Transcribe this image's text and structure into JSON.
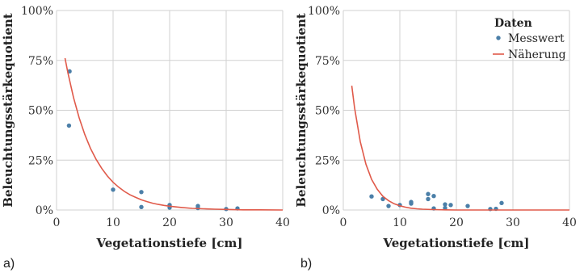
{
  "chart_data": [
    {
      "type": "scatter",
      "panel_label": "a)",
      "xlabel": "Vegetationstiefe [cm]",
      "ylabel": "Beleuchtungsstärkequotient",
      "xlim": [
        0,
        40
      ],
      "ylim": [
        0,
        100
      ],
      "x_ticks": [
        0,
        10,
        20,
        30,
        40
      ],
      "y_ticks": [
        0,
        25,
        50,
        75,
        100
      ],
      "y_tick_labels": [
        "0%",
        "25%",
        "50%",
        "75%",
        "100%"
      ],
      "grid": true,
      "series": [
        {
          "name": "Messwert",
          "kind": "scatter",
          "color": "#4b7fa8",
          "points": [
            [
              2.3,
              69.5
            ],
            [
              2.2,
              42.3
            ],
            [
              10,
              10.2
            ],
            [
              15,
              9.0
            ],
            [
              15,
              1.5
            ],
            [
              20,
              2.5
            ],
            [
              20,
              1.2
            ],
            [
              25,
              2.0
            ],
            [
              25,
              1.0
            ],
            [
              30,
              0.5
            ],
            [
              32,
              0.8
            ]
          ]
        },
        {
          "name": "Näherung",
          "kind": "line",
          "color": "#e05a4a",
          "points": [
            [
              1.5,
              76.1
            ],
            [
              2,
              68.9
            ],
            [
              3,
              56.4
            ],
            [
              4,
              46.2
            ],
            [
              5,
              37.8
            ],
            [
              6,
              30.9
            ],
            [
              7,
              25.4
            ],
            [
              8,
              20.8
            ],
            [
              9,
              17.0
            ],
            [
              10,
              13.9
            ],
            [
              11,
              11.4
            ],
            [
              12,
              9.3
            ],
            [
              13,
              7.6
            ],
            [
              14,
              6.3
            ],
            [
              15,
              5.1
            ],
            [
              16,
              4.2
            ],
            [
              17,
              3.4
            ],
            [
              18,
              2.8
            ],
            [
              19,
              2.3
            ],
            [
              20,
              1.9
            ],
            [
              22,
              1.3
            ],
            [
              24,
              0.8
            ],
            [
              26,
              0.6
            ],
            [
              28,
              0.4
            ],
            [
              30,
              0.3
            ],
            [
              33,
              0.1
            ],
            [
              36,
              0.1
            ],
            [
              40,
              0.0
            ]
          ]
        }
      ]
    },
    {
      "type": "scatter",
      "panel_label": "b)",
      "xlabel": "Vegetationstiefe [cm]",
      "ylabel": "Beleuchtungsstärkequotient",
      "xlim": [
        0,
        40
      ],
      "ylim": [
        0,
        100
      ],
      "x_ticks": [
        0,
        10,
        20,
        30,
        40
      ],
      "y_ticks": [
        0,
        25,
        50,
        75,
        100
      ],
      "y_tick_labels": [
        "0%",
        "25%",
        "50%",
        "75%",
        "100%"
      ],
      "grid": true,
      "legend": {
        "title": "Daten",
        "position": "top-right",
        "entries": [
          "Messwert",
          "Näherung"
        ]
      },
      "series": [
        {
          "name": "Messwert",
          "kind": "scatter",
          "color": "#4b7fa8",
          "points": [
            [
              5,
              6.8
            ],
            [
              7,
              5.5
            ],
            [
              8,
              2.0
            ],
            [
              10,
              2.5
            ],
            [
              12,
              4.0
            ],
            [
              12,
              3.2
            ],
            [
              15,
              8.0
            ],
            [
              15,
              5.5
            ],
            [
              16,
              7.0
            ],
            [
              16,
              0.8
            ],
            [
              18,
              2.8
            ],
            [
              18,
              1.0
            ],
            [
              19,
              2.5
            ],
            [
              22,
              2.0
            ],
            [
              26,
              0.5
            ],
            [
              27,
              0.6
            ],
            [
              28,
              3.5
            ]
          ]
        },
        {
          "name": "Näherung",
          "kind": "line",
          "color": "#e05a4a",
          "points": [
            [
              1.5,
              62.3
            ],
            [
              2,
              51.1
            ],
            [
              3,
              34.3
            ],
            [
              4,
              23.0
            ],
            [
              5,
              15.4
            ],
            [
              6,
              10.4
            ],
            [
              7,
              6.9
            ],
            [
              8,
              4.7
            ],
            [
              9,
              3.1
            ],
            [
              10,
              2.1
            ],
            [
              11,
              1.4
            ],
            [
              12,
              0.9
            ],
            [
              13,
              0.6
            ],
            [
              14,
              0.4
            ],
            [
              16,
              0.2
            ],
            [
              18,
              0.1
            ],
            [
              20,
              0.0
            ],
            [
              25,
              0.0
            ],
            [
              30,
              0.0
            ],
            [
              35,
              0.0
            ],
            [
              40,
              0.0
            ]
          ]
        }
      ]
    }
  ]
}
